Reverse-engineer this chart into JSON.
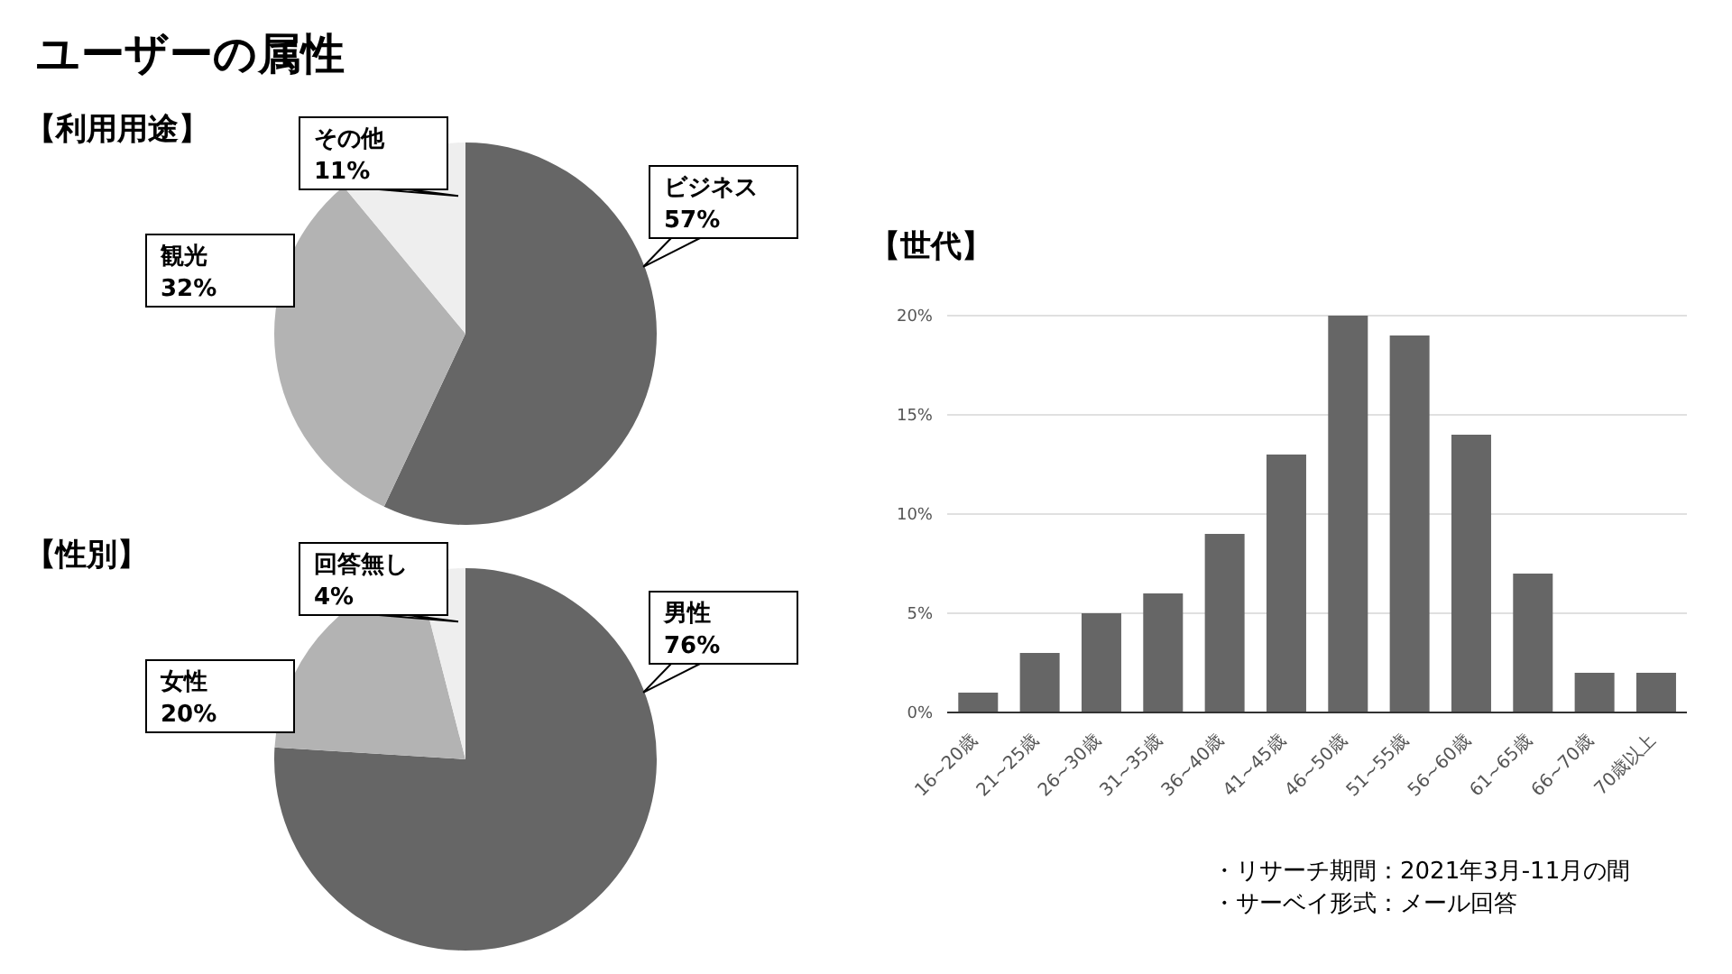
{
  "chart_data": [
    {
      "type": "pie",
      "title": "ユーザーの属性",
      "subtitle": "【利用用途】",
      "categories": [
        "ビジネス",
        "観光",
        "その他"
      ],
      "values": [
        57,
        32,
        11
      ],
      "value_labels": [
        "57%",
        "32%",
        "11%"
      ],
      "colors": [
        "#666666",
        "#b3b3b3",
        "#eeeeee"
      ]
    },
    {
      "type": "pie",
      "title": "【性別】",
      "categories": [
        "男性",
        "女性",
        "回答無し"
      ],
      "values": [
        76,
        20,
        4
      ],
      "value_labels": [
        "76%",
        "20%",
        "4%"
      ],
      "colors": [
        "#666666",
        "#b3b3b3",
        "#eeeeee"
      ]
    },
    {
      "type": "bar",
      "title": "【世代】",
      "categories": [
        "16~20歳",
        "21~25歳",
        "26~30歳",
        "31~35歳",
        "36~40歳",
        "41~45歳",
        "46~50歳",
        "51~55歳",
        "56~60歳",
        "61~65歳",
        "66~70歳",
        "70歳以上"
      ],
      "values": [
        1,
        3,
        5,
        6,
        9,
        13,
        20,
        19,
        14,
        7,
        2,
        2
      ],
      "color": "#666666",
      "ylim": [
        0,
        20
      ],
      "yticks": [
        {
          "value": 0,
          "label": "0%"
        },
        {
          "value": 5,
          "label": "5%"
        },
        {
          "value": 10,
          "label": "10%"
        },
        {
          "value": 15,
          "label": "15%"
        },
        {
          "value": 20,
          "label": "20%"
        }
      ],
      "grid": "y",
      "annotations": [
        "・リサーチ期間：2021年3月-11月の間",
        "・サーベイ形式：メール回答"
      ]
    }
  ]
}
